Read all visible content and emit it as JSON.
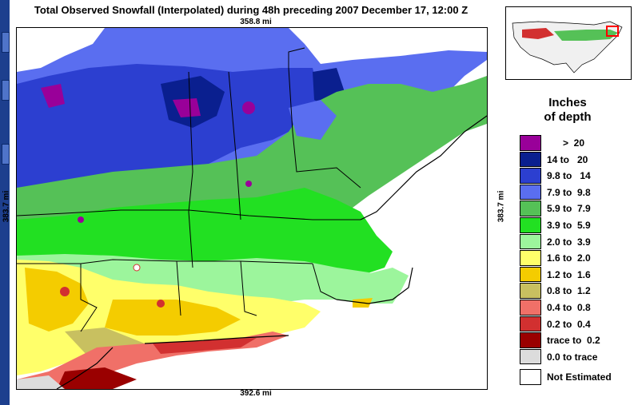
{
  "title": "Total Observed Snowfall (Interpolated) during 48h preceding 2007 December 17, 12:00 Z",
  "dims": {
    "top": "358.8 mi",
    "bottom": "392.6 mi",
    "left": "383.7 mi",
    "right": "383.7 mi"
  },
  "legend": {
    "title_line1": "Inches",
    "title_line2": "of depth",
    "items": [
      {
        "label": "      >  20",
        "color": "#990099"
      },
      {
        "label": "14 to   20",
        "color": "#0a1f8f"
      },
      {
        "label": "9.8 to   14",
        "color": "#2c3fd0"
      },
      {
        "label": "7.9 to  9.8",
        "color": "#5a6ef0"
      },
      {
        "label": "5.9 to  7.9",
        "color": "#55c157"
      },
      {
        "label": "3.9 to  5.9",
        "color": "#22e022"
      },
      {
        "label": "2.0 to  3.9",
        "color": "#9cf59c"
      },
      {
        "label": "1.6 to  2.0",
        "color": "#ffff6a"
      },
      {
        "label": "1.2 to  1.6",
        "color": "#f4cc00"
      },
      {
        "label": "0.8 to  1.2",
        "color": "#c8c060"
      },
      {
        "label": "0.4 to  0.8",
        "color": "#f07068"
      },
      {
        "label": "0.2 to  0.4",
        "color": "#d23030"
      },
      {
        "label": "trace to  0.2",
        "color": "#9a0000"
      },
      {
        "label": "0.0 to trace",
        "color": "#dcdcdc"
      }
    ],
    "not_estimated": "Not Estimated"
  },
  "colors": {
    "frame": "#1d3f8e",
    "ocean": "#ffffff",
    "inset_box": "#ff0000"
  }
}
